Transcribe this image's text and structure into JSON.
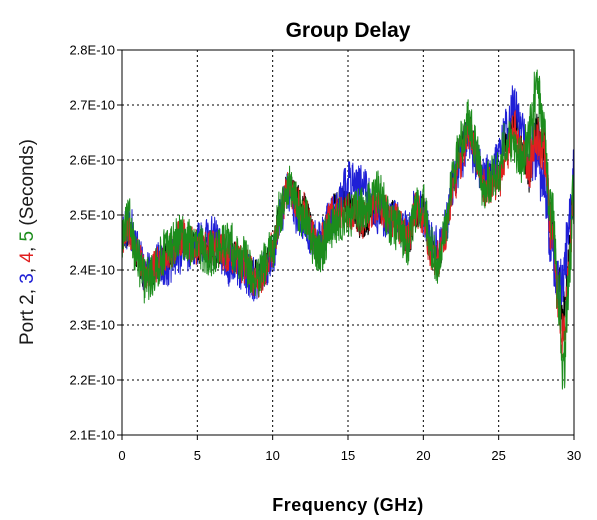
{
  "chart_data": {
    "type": "line",
    "title": "Group Delay",
    "xlabel": "Frequency (GHz)",
    "ylabel_parts": [
      {
        "text": "Port 2",
        "color": "#1a1a1a"
      },
      {
        "text": ", ",
        "color": "#1a1a1a"
      },
      {
        "text": "3",
        "color": "#1f1fd6"
      },
      {
        "text": ", ",
        "color": "#1a1a1a"
      },
      {
        "text": "4",
        "color": "#e02020"
      },
      {
        "text": ", ",
        "color": "#1a1a1a"
      },
      {
        "text": "5",
        "color": "#1c8c1c"
      },
      {
        "text": " (Seconds)",
        "color": "#1a1a1a"
      }
    ],
    "xlim": [
      0,
      30
    ],
    "ylim": [
      2.1e-10,
      2.8e-10
    ],
    "x_ticks": [
      "0",
      "5",
      "10",
      "15",
      "20",
      "25",
      "30"
    ],
    "x_tick_values": [
      0,
      5,
      10,
      15,
      20,
      25,
      30
    ],
    "y_ticks": [
      "2.1E-10",
      "2.2E-10",
      "2.3E-10",
      "2.4E-10",
      "2.5E-10",
      "2.6E-10",
      "2.7E-10",
      "2.8E-10"
    ],
    "y_tick_values": [
      2.1e-10,
      2.2e-10,
      2.3e-10,
      2.4e-10,
      2.5e-10,
      2.6e-10,
      2.7e-10,
      2.8e-10
    ],
    "grid": true,
    "grid_style": "dotted",
    "series": [
      {
        "color": "#000000",
        "x": [
          0,
          0.5,
          1,
          1.5,
          2,
          3,
          4,
          5,
          6,
          7,
          8,
          9,
          9.5,
          10,
          10.5,
          11,
          12,
          13,
          14,
          15,
          16,
          17,
          18,
          19,
          19.5,
          20,
          20.5,
          21,
          21.5,
          22,
          22.5,
          23,
          23.5,
          24,
          25,
          25.5,
          26,
          26.5,
          27,
          27.5,
          28,
          28.5,
          29,
          29.3,
          29.6,
          30
        ],
        "y": [
          2.46e-10,
          2.47e-10,
          2.43e-10,
          2.39e-10,
          2.4e-10,
          2.42e-10,
          2.46e-10,
          2.44e-10,
          2.43e-10,
          2.44e-10,
          2.41e-10,
          2.39e-10,
          2.41e-10,
          2.44e-10,
          2.5e-10,
          2.55e-10,
          2.52e-10,
          2.44e-10,
          2.51e-10,
          2.53e-10,
          2.48e-10,
          2.51e-10,
          2.5e-10,
          2.45e-10,
          2.5e-10,
          2.51e-10,
          2.44e-10,
          2.42e-10,
          2.47e-10,
          2.57e-10,
          2.62e-10,
          2.67e-10,
          2.61e-10,
          2.56e-10,
          2.57e-10,
          2.63e-10,
          2.68e-10,
          2.62e-10,
          2.58e-10,
          2.66e-10,
          2.63e-10,
          2.48e-10,
          2.37e-10,
          2.32e-10,
          2.4e-10,
          2.56e-10
        ]
      },
      {
        "color": "#1f1fd6",
        "x": [
          0,
          0.5,
          1,
          1.5,
          2,
          3,
          4,
          5,
          6,
          7,
          8,
          9,
          9.5,
          10,
          10.5,
          11,
          12,
          13,
          14,
          15,
          16,
          17,
          18,
          19,
          19.5,
          20,
          20.5,
          21,
          21.5,
          22,
          22.5,
          23,
          23.5,
          24,
          25,
          25.5,
          26,
          26.5,
          27,
          27.5,
          28,
          28.5,
          29,
          29.3,
          29.6,
          30
        ],
        "y": [
          2.46e-10,
          2.48e-10,
          2.44e-10,
          2.4e-10,
          2.41e-10,
          2.41e-10,
          2.43e-10,
          2.45e-10,
          2.46e-10,
          2.41e-10,
          2.4e-10,
          2.38e-10,
          2.4e-10,
          2.43e-10,
          2.49e-10,
          2.54e-10,
          2.48e-10,
          2.45e-10,
          2.5e-10,
          2.56e-10,
          2.55e-10,
          2.5e-10,
          2.49e-10,
          2.47e-10,
          2.52e-10,
          2.5e-10,
          2.45e-10,
          2.44e-10,
          2.48e-10,
          2.56e-10,
          2.6e-10,
          2.64e-10,
          2.6e-10,
          2.57e-10,
          2.6e-10,
          2.66e-10,
          2.7e-10,
          2.66e-10,
          2.6e-10,
          2.62e-10,
          2.55e-10,
          2.45e-10,
          2.36e-10,
          2.38e-10,
          2.46e-10,
          2.57e-10
        ]
      },
      {
        "color": "#e02020",
        "x": [
          0,
          0.5,
          1,
          1.5,
          2,
          3,
          4,
          5,
          6,
          7,
          8,
          9,
          9.5,
          10,
          10.5,
          11,
          12,
          13,
          14,
          15,
          16,
          17,
          18,
          19,
          19.5,
          20,
          20.5,
          21,
          21.5,
          22,
          22.5,
          23,
          23.5,
          24,
          25,
          25.5,
          26,
          26.5,
          27,
          27.5,
          28,
          28.5,
          29,
          29.3,
          29.6,
          30
        ],
        "y": [
          2.46e-10,
          2.47e-10,
          2.43e-10,
          2.39e-10,
          2.4e-10,
          2.43e-10,
          2.46e-10,
          2.44e-10,
          2.44e-10,
          2.43e-10,
          2.41e-10,
          2.38e-10,
          2.4e-10,
          2.44e-10,
          2.5e-10,
          2.55e-10,
          2.51e-10,
          2.44e-10,
          2.5e-10,
          2.51e-10,
          2.49e-10,
          2.52e-10,
          2.49e-10,
          2.46e-10,
          2.51e-10,
          2.5e-10,
          2.43e-10,
          2.42e-10,
          2.47e-10,
          2.55e-10,
          2.6e-10,
          2.65e-10,
          2.61e-10,
          2.55e-10,
          2.56e-10,
          2.61e-10,
          2.66e-10,
          2.62e-10,
          2.59e-10,
          2.65e-10,
          2.62e-10,
          2.47e-10,
          2.34e-10,
          2.27e-10,
          2.38e-10,
          2.53e-10
        ]
      },
      {
        "color": "#1c8c1c",
        "x": [
          0,
          0.5,
          1,
          1.5,
          2,
          3,
          4,
          5,
          6,
          7,
          8,
          9,
          9.5,
          10,
          10.5,
          11,
          12,
          13,
          14,
          15,
          16,
          17,
          18,
          19,
          19.5,
          20,
          20.5,
          21,
          21.5,
          22,
          22.5,
          23,
          23.5,
          24,
          25,
          25.5,
          26,
          26.5,
          27,
          27.5,
          28,
          28.5,
          29,
          29.3,
          29.6,
          30
        ],
        "y": [
          2.46e-10,
          2.49e-10,
          2.42e-10,
          2.38e-10,
          2.39e-10,
          2.44e-10,
          2.46e-10,
          2.44e-10,
          2.43e-10,
          2.45e-10,
          2.42e-10,
          2.38e-10,
          2.41e-10,
          2.44e-10,
          2.51e-10,
          2.55e-10,
          2.5e-10,
          2.43e-10,
          2.48e-10,
          2.5e-10,
          2.51e-10,
          2.54e-10,
          2.48e-10,
          2.45e-10,
          2.51e-10,
          2.52e-10,
          2.44e-10,
          2.41e-10,
          2.48e-10,
          2.58e-10,
          2.63e-10,
          2.67e-10,
          2.62e-10,
          2.55e-10,
          2.58e-10,
          2.64e-10,
          2.62e-10,
          2.6e-10,
          2.64e-10,
          2.72e-10,
          2.65e-10,
          2.5e-10,
          2.35e-10,
          2.22e-10,
          2.35e-10,
          2.54e-10
        ]
      }
    ]
  }
}
